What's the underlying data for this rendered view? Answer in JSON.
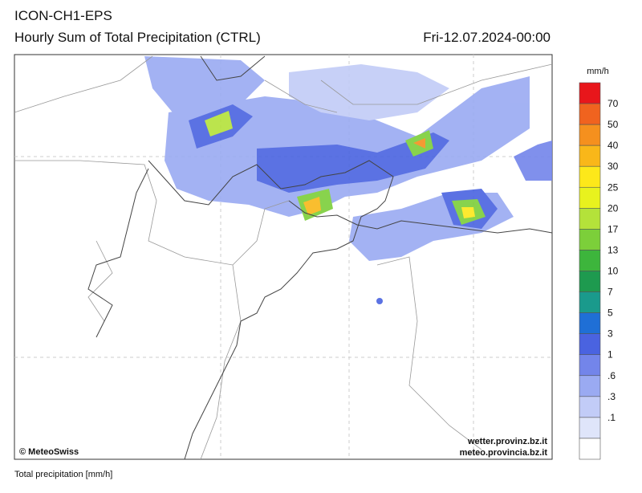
{
  "header": {
    "model": "ICON-CH1-EPS",
    "title": "Hourly Sum of Total Precipitation (CTRL)",
    "datetime": "Fri-12.07.2024-00:00"
  },
  "legend": {
    "unit": "mm/h",
    "labels": [
      "70",
      "50",
      "40",
      "30",
      "25",
      "20",
      "17",
      "13",
      "10",
      "7",
      "5",
      "3",
      "1",
      ".6",
      ".3",
      ".1"
    ],
    "colors": [
      "#e8161b",
      "#f0631f",
      "#f5901e",
      "#f9b719",
      "#fde81a",
      "#e8f21e",
      "#b4e23a",
      "#7ccf3a",
      "#3db53c",
      "#1e9a4f",
      "#1a9a8c",
      "#1f6fd6",
      "#4a63e0",
      "#7385ea",
      "#9aaaf2",
      "#c2ccf7",
      "#dfe5fa",
      "#ffffff"
    ]
  },
  "map": {
    "credit": "© MeteoSwiss",
    "source_1": "wetter.provinz.bz.it",
    "source_2": "meteo.provincia.bz.it"
  },
  "footer": {
    "caption": "Total precipitation [mm/h]"
  }
}
